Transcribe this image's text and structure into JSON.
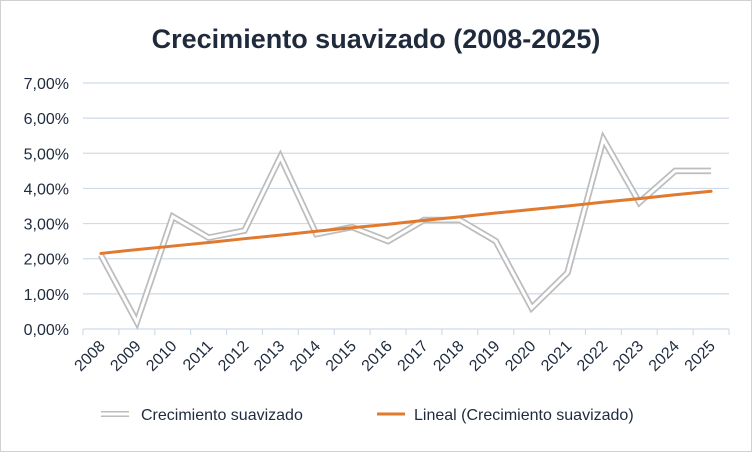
{
  "chart_data": {
    "type": "line",
    "title": "Crecimiento suavizado (2008-2025)",
    "xlabel": "",
    "ylabel": "",
    "categories": [
      "2008",
      "2009",
      "2010",
      "2011",
      "2012",
      "2013",
      "2014",
      "2015",
      "2016",
      "2017",
      "2018",
      "2019",
      "2020",
      "2021",
      "2022",
      "2023",
      "2024",
      "2025"
    ],
    "yticks": [
      "0,00%",
      "1,00%",
      "2,00%",
      "3,00%",
      "4,00%",
      "5,00%",
      "6,00%",
      "7,00%"
    ],
    "ylim": [
      0,
      7
    ],
    "grid": true,
    "legend_position": "bottom",
    "series": [
      {
        "name": "Crecimiento suavizado",
        "color": "#ffffff",
        "shadow_color": "#bdbdbd",
        "values": [
          2.1,
          0.2,
          3.2,
          2.6,
          2.8,
          4.9,
          2.7,
          2.9,
          2.5,
          3.1,
          3.1,
          2.5,
          0.6,
          1.6,
          5.4,
          3.6,
          4.5,
          4.5
        ]
      },
      {
        "name": "Lineal (Crecimiento suavizado)",
        "color": "#e07a2f",
        "type": "trendline",
        "values": [
          2.15,
          2.26,
          2.36,
          2.46,
          2.57,
          2.67,
          2.78,
          2.88,
          2.98,
          3.09,
          3.19,
          3.3,
          3.4,
          3.5,
          3.61,
          3.71,
          3.82,
          3.92
        ]
      }
    ]
  }
}
